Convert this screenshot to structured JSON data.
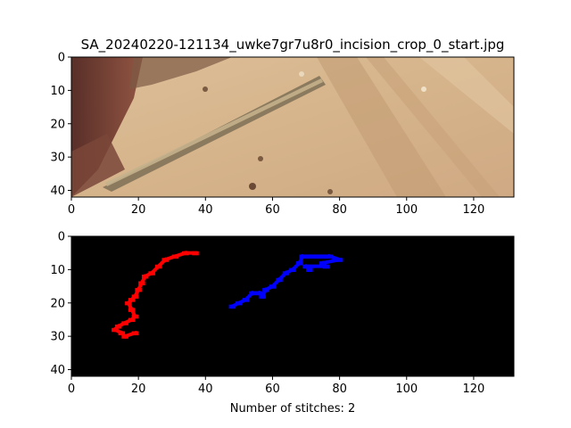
{
  "chart_data": [
    {
      "type": "image",
      "title": "SA_20240220-121134_uwke7gr7u8r0_incision_crop_0_start.jpg",
      "xlim": [
        0,
        132
      ],
      "ylim": [
        42,
        0
      ],
      "xticks": [
        0,
        20,
        40,
        60,
        80,
        100,
        120
      ],
      "yticks": [
        0,
        10,
        20,
        30,
        40
      ],
      "image_description_colors": {
        "skin_light": "#d9b890",
        "skin_shadow": "#c9a47c",
        "tissue_dark": "#5a2a22",
        "instrument": "#8a7a60"
      }
    },
    {
      "type": "mask",
      "title": "",
      "xlabel": "Number of stitches: 2",
      "xlim": [
        0,
        132
      ],
      "ylim": [
        42,
        0
      ],
      "xticks": [
        0,
        20,
        40,
        60,
        80,
        100,
        120
      ],
      "yticks": [
        0,
        10,
        20,
        30,
        40
      ],
      "background": "#000000",
      "series": [
        {
          "color": "#ff0000",
          "points": [
            [
              37,
              5
            ],
            [
              34,
              5
            ],
            [
              31,
              6
            ],
            [
              28,
              7
            ],
            [
              26,
              9
            ],
            [
              24,
              11
            ],
            [
              22,
              12
            ],
            [
              21,
              14
            ],
            [
              20,
              16
            ],
            [
              19,
              18
            ],
            [
              18,
              19
            ],
            [
              17,
              20
            ],
            [
              18,
              22
            ],
            [
              19,
              24
            ],
            [
              18,
              25
            ],
            [
              16,
              26
            ],
            [
              14,
              27
            ],
            [
              13,
              28
            ],
            [
              15,
              29
            ],
            [
              16,
              30
            ],
            [
              19,
              29
            ]
          ]
        },
        {
          "color": "#0000ff",
          "points": [
            [
              48,
              21
            ],
            [
              50,
              20
            ],
            [
              52,
              19
            ],
            [
              54,
              17
            ],
            [
              56,
              17
            ],
            [
              57,
              18
            ],
            [
              58,
              16
            ],
            [
              60,
              15
            ],
            [
              62,
              13
            ],
            [
              64,
              11
            ],
            [
              66,
              10
            ],
            [
              68,
              8
            ],
            [
              69,
              6
            ],
            [
              71,
              6
            ],
            [
              73,
              6
            ],
            [
              75,
              6
            ],
            [
              77,
              6
            ],
            [
              80,
              7
            ],
            [
              75,
              8
            ],
            [
              76,
              9
            ],
            [
              70,
              9
            ],
            [
              71,
              10
            ]
          ]
        }
      ]
    }
  ]
}
